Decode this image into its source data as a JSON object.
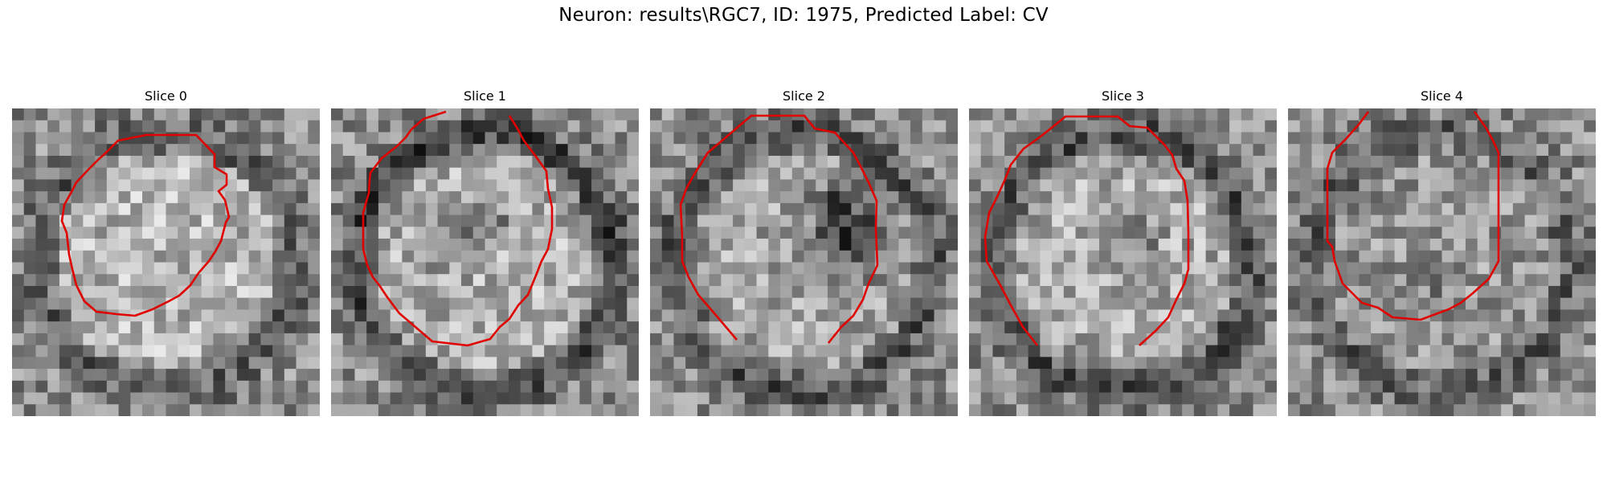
{
  "figure": {
    "title": "Neuron: results\\RGC7, ID: 1975, Predicted Label: CV",
    "panels": [
      {
        "label": "Slice 0"
      },
      {
        "label": "Slice 1"
      },
      {
        "label": "Slice 2"
      },
      {
        "label": "Slice 3"
      },
      {
        "label": "Slice 4"
      }
    ],
    "colormap": "gray",
    "contour_color": "#e00000"
  }
}
